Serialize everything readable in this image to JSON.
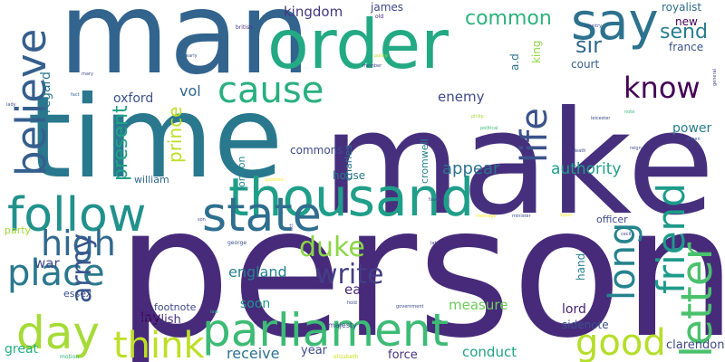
{
  "word_cloud": {
    "background": "#ffffff",
    "palette": [
      "#440154",
      "#3b528b",
      "#21918c",
      "#5ec962",
      "#fde725"
    ],
    "words": [
      {
        "text": "person",
        "color": "#472a7a"
      },
      {
        "text": "make",
        "color": "#46307e"
      },
      {
        "text": "man",
        "color": "#32648e"
      },
      {
        "text": "time",
        "color": "#29788e"
      },
      {
        "text": "order",
        "color": "#23a983"
      },
      {
        "text": "thousand",
        "color": "#1f9e89"
      },
      {
        "text": "state",
        "color": "#2e6e8e"
      },
      {
        "text": "follow",
        "color": "#21918c"
      },
      {
        "text": "parliament",
        "color": "#3cbb75"
      },
      {
        "text": "letter",
        "color": "#4ac16d"
      },
      {
        "text": "say",
        "color": "#2c728e"
      },
      {
        "text": "day",
        "color": "#a5db36"
      },
      {
        "text": "believe",
        "color": "#355f8d"
      },
      {
        "text": "friend",
        "color": "#1e9b8a"
      },
      {
        "text": "know",
        "color": "#440154"
      },
      {
        "text": "good",
        "color": "#b5de2b"
      },
      {
        "text": "cause",
        "color": "#29af7f"
      },
      {
        "text": "life",
        "color": "#3b528b"
      },
      {
        "text": "long",
        "color": "#25838e"
      },
      {
        "text": "place",
        "color": "#2a788e"
      },
      {
        "text": "think",
        "color": "#bddf26"
      },
      {
        "text": "high",
        "color": "#31688e"
      },
      {
        "text": "write",
        "color": "#433e85"
      },
      {
        "text": "duke",
        "color": "#8bd646"
      },
      {
        "text": "army",
        "color": "#39568c"
      },
      {
        "text": "common",
        "color": "#2db27d"
      },
      {
        "text": "sir",
        "color": "#31688e"
      },
      {
        "text": "send",
        "color": "#287d8e"
      },
      {
        "text": "present",
        "color": "#1fa187"
      },
      {
        "text": "prince",
        "color": "#bddf26"
      },
      {
        "text": "appear",
        "color": "#2c728e"
      },
      {
        "text": "authority",
        "color": "#1f9e89"
      },
      {
        "text": "england",
        "color": "#26828e"
      },
      {
        "text": "earl",
        "color": "#482878"
      },
      {
        "text": "enemy",
        "color": "#3e4989"
      },
      {
        "text": "kingdom",
        "color": "#453781"
      },
      {
        "text": "measure",
        "color": "#6ccd5a"
      },
      {
        "text": "conduct",
        "color": "#20a386"
      },
      {
        "text": "receive",
        "color": "#2c728e"
      },
      {
        "text": "power",
        "color": "#287c8e"
      },
      {
        "text": "france",
        "color": "#3b528b"
      },
      {
        "text": "court",
        "color": "#365c8d"
      },
      {
        "text": "new",
        "color": "#440154"
      },
      {
        "text": "royalist",
        "color": "#2e6e8e"
      },
      {
        "text": "king",
        "color": "#90d743"
      },
      {
        "text": "a.d",
        "color": "#2d718e"
      },
      {
        "text": "vol",
        "color": "#31688e"
      },
      {
        "text": "oxford",
        "color": "#3b528b"
      },
      {
        "text": "regard",
        "color": "#2a788e"
      },
      {
        "text": "lay",
        "color": "#440154"
      },
      {
        "text": "war",
        "color": "#3e4989"
      },
      {
        "text": "house",
        "color": "#2a788e"
      },
      {
        "text": "william",
        "color": "#31688e"
      },
      {
        "text": "commons",
        "color": "#3e4989"
      },
      {
        "text": "charles",
        "color": "#2c728e"
      },
      {
        "text": "cromwell",
        "color": "#26828e"
      },
      {
        "text": "london",
        "color": "#25838e"
      },
      {
        "text": "essex",
        "color": "#3b528b"
      },
      {
        "text": "footnote",
        "color": "#3e4989"
      },
      {
        "text": "english",
        "color": "#46337f"
      },
      {
        "text": "soon",
        "color": "#1f968b"
      },
      {
        "text": "lord",
        "color": "#481f70"
      },
      {
        "text": "hand",
        "color": "#26828e"
      },
      {
        "text": "sidenote",
        "color": "#3b528b"
      },
      {
        "text": "officer",
        "color": "#3e4989"
      },
      {
        "text": "party",
        "color": "#a2da37"
      },
      {
        "text": "great",
        "color": "#27ad81"
      },
      {
        "text": "year",
        "color": "#3e4989"
      },
      {
        "text": "force",
        "color": "#46337f"
      },
      {
        "text": "clarendon",
        "color": "#3e4989"
      },
      {
        "text": "james",
        "color": "#404688"
      },
      {
        "text": "majesty",
        "color": "#404688"
      },
      {
        "text": "elizabeth",
        "color": "#cae11f"
      },
      {
        "text": "old",
        "color": "#482173"
      },
      {
        "text": "british",
        "color": "#46337f"
      },
      {
        "text": "early",
        "color": "#3b528b"
      },
      {
        "text": "mary",
        "color": "#3e4989"
      },
      {
        "text": "fact",
        "color": "#31688e"
      },
      {
        "text": "lady",
        "color": "#3b528b"
      },
      {
        "text": "policy",
        "color": "#b8de29"
      },
      {
        "text": "member",
        "color": "#3e4989"
      },
      {
        "text": "general",
        "color": "#3e4989"
      },
      {
        "text": "leicester",
        "color": "#3e4989"
      },
      {
        "text": "note",
        "color": "#35b779"
      },
      {
        "text": "political",
        "color": "#35b779"
      },
      {
        "text": "philip",
        "color": "#a2da37"
      },
      {
        "text": "death",
        "color": "#3e4989"
      },
      {
        "text": "reign",
        "color": "#3b528b"
      },
      {
        "text": "queen",
        "color": "#3b528b"
      },
      {
        "text": "position",
        "color": "#fde725"
      },
      {
        "text": "favor",
        "color": "#3e4989"
      },
      {
        "text": "marriage",
        "color": "#fde725"
      },
      {
        "text": "minister",
        "color": "#3e4989"
      },
      {
        "text": "spain",
        "color": "#fde725"
      },
      {
        "text": "cecil",
        "color": "#3e4989"
      },
      {
        "text": "george",
        "color": "#3b528b"
      },
      {
        "text": "late",
        "color": "#3e4989"
      },
      {
        "text": "act",
        "color": "#3e4989"
      },
      {
        "text": "hold",
        "color": "#3e4989"
      },
      {
        "text": "government",
        "color": "#3e4989"
      },
      {
        "text": "motion",
        "color": "#2db27d"
      },
      {
        "text": "law",
        "color": "#2db27d"
      },
      {
        "text": "son",
        "color": "#3e4989"
      },
      {
        "text": "country",
        "color": "#3e4989"
      }
    ]
  }
}
